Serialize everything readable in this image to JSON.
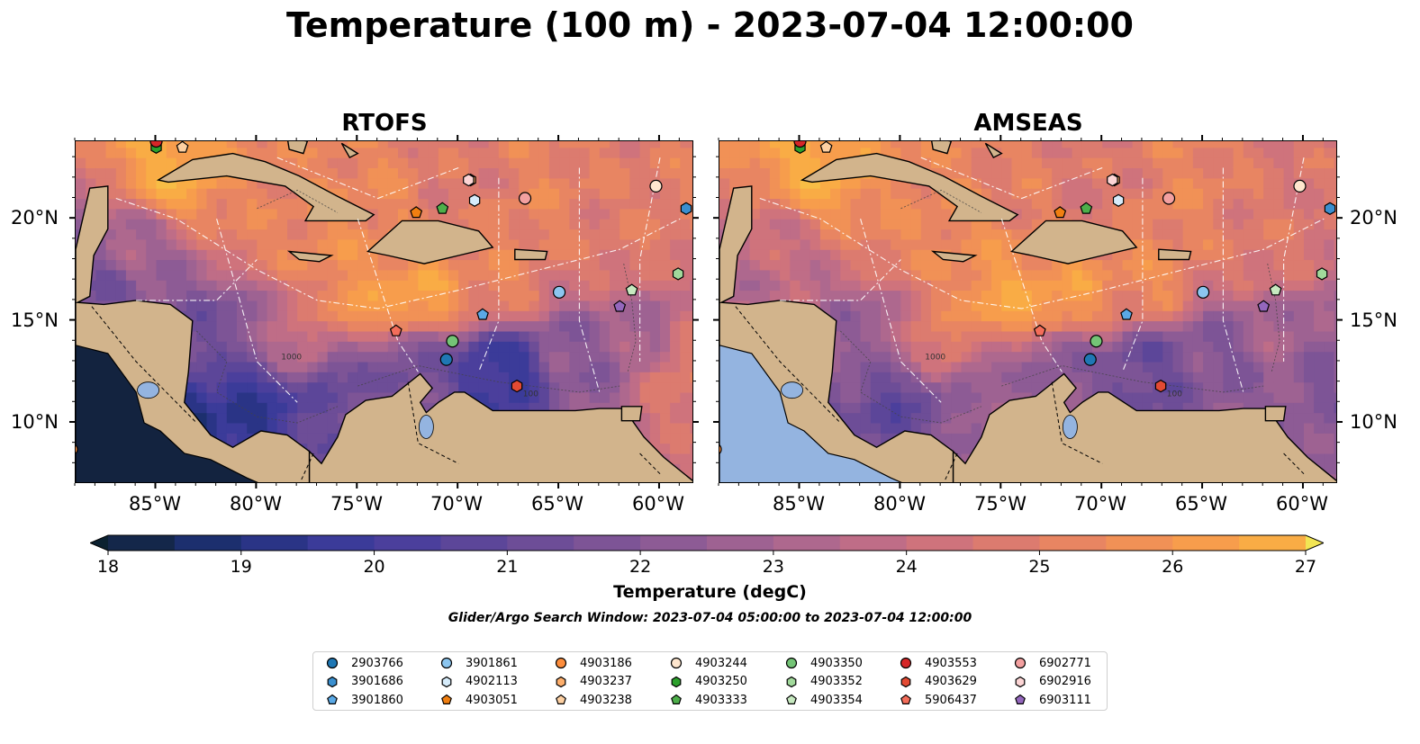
{
  "title": "Temperature (100 m) - 2023-07-04 12:00:00",
  "panels": [
    {
      "id": "rtofs",
      "title": "RTOFS"
    },
    {
      "id": "amseas",
      "title": "AMSEAS"
    }
  ],
  "axes": {
    "lat_ticks": [
      "10°N",
      "15°N",
      "20°N"
    ],
    "lon_ticks": [
      "85°W",
      "80°W",
      "75°W",
      "70°W",
      "65°W",
      "60°W"
    ],
    "extent": {
      "lon": [
        -89,
        -58.3
      ],
      "lat": [
        7,
        23.8
      ]
    }
  },
  "contour_labels": [
    "1000",
    "100"
  ],
  "colorbar": {
    "label": "Temperature (degC)",
    "ticks": [
      "18",
      "19",
      "20",
      "21",
      "22",
      "23",
      "24",
      "25",
      "26",
      "27"
    ],
    "min": 18,
    "max": 27,
    "step": 0.5,
    "extend": "both",
    "colors": [
      "#0b2130",
      "#14274a",
      "#1c2f6e",
      "#2a3486",
      "#3b3b99",
      "#4b3f9c",
      "#5c4699",
      "#6d4d97",
      "#7d5496",
      "#8d5b95",
      "#9e6292",
      "#ae688e",
      "#bf6d87",
      "#cf737c",
      "#dc7b6f",
      "#e88562",
      "#f19156",
      "#f79d4c",
      "#f9ac45",
      "#f8bd45",
      "#f6d04a",
      "#f2e554"
    ],
    "palette": "thermal",
    "land_color": "#d2b48c",
    "ocean_color": "#94b4e0"
  },
  "search_window": "Glider/Argo Search Window: 2023-07-04 05:00:00 to 2023-07-04 12:00:00",
  "floats": [
    {
      "id": "2903766",
      "marker": "circle",
      "color": "#1f77b4",
      "lon": -70.6,
      "lat": 13.1
    },
    {
      "id": "3901686",
      "marker": "hexagon",
      "color": "#3a8fcf",
      "lon": -58.7,
      "lat": 20.5
    },
    {
      "id": "3901860",
      "marker": "pentagon",
      "color": "#5aa9e6",
      "lon": -68.8,
      "lat": 15.3
    },
    {
      "id": "3901861",
      "marker": "circle",
      "color": "#8cc6f0",
      "lon": -65.0,
      "lat": 16.4
    },
    {
      "id": "4902113",
      "marker": "hexagon",
      "color": "#d6ecfb",
      "lon": -69.2,
      "lat": 20.9
    },
    {
      "id": "4903051",
      "marker": "pentagon",
      "color": "#f07f11",
      "lon": -72.1,
      "lat": 20.3
    },
    {
      "id": "4903186",
      "marker": "circle",
      "color": "#fd8d3c",
      "lon": -89.2,
      "lat": 8.7
    },
    {
      "id": "4903237",
      "marker": "hexagon",
      "color": "#fdae6b",
      "lon": -69.4,
      "lat": 21.9
    },
    {
      "id": "4903238",
      "marker": "pentagon",
      "color": "#fdd0a2",
      "lon": -83.7,
      "lat": 23.5
    },
    {
      "id": "4903244",
      "marker": "circle",
      "color": "#fee6ce",
      "lon": -60.2,
      "lat": 21.6
    },
    {
      "id": "4903250",
      "marker": "hexagon",
      "color": "#2ca02c",
      "lon": -85.0,
      "lat": 23.5
    },
    {
      "id": "4903333",
      "marker": "pentagon",
      "color": "#4daf4a",
      "lon": -70.8,
      "lat": 20.5
    },
    {
      "id": "4903350",
      "marker": "circle",
      "color": "#74c476",
      "lon": -70.3,
      "lat": 14.0
    },
    {
      "id": "4903352",
      "marker": "hexagon",
      "color": "#a1d99b",
      "lon": -59.1,
      "lat": 17.3
    },
    {
      "id": "4903354",
      "marker": "pentagon",
      "color": "#c7e9c0",
      "lon": -61.4,
      "lat": 16.5
    },
    {
      "id": "4903553",
      "marker": "circle",
      "color": "#d62728",
      "lon": -85.0,
      "lat": 23.8
    },
    {
      "id": "4903629",
      "marker": "hexagon",
      "color": "#e34a33",
      "lon": -67.1,
      "lat": 11.8
    },
    {
      "id": "5906437",
      "marker": "pentagon",
      "color": "#f46d5a",
      "lon": -73.1,
      "lat": 14.5
    },
    {
      "id": "6902771",
      "marker": "circle",
      "color": "#f3a0a0",
      "lon": -66.7,
      "lat": 21.0
    },
    {
      "id": "6902916",
      "marker": "hexagon",
      "color": "#fcd5d5",
      "lon": -69.5,
      "lat": 21.9
    },
    {
      "id": "6903111",
      "marker": "pentagon",
      "color": "#9467bd",
      "lon": -62.0,
      "lat": 15.7
    }
  ]
}
